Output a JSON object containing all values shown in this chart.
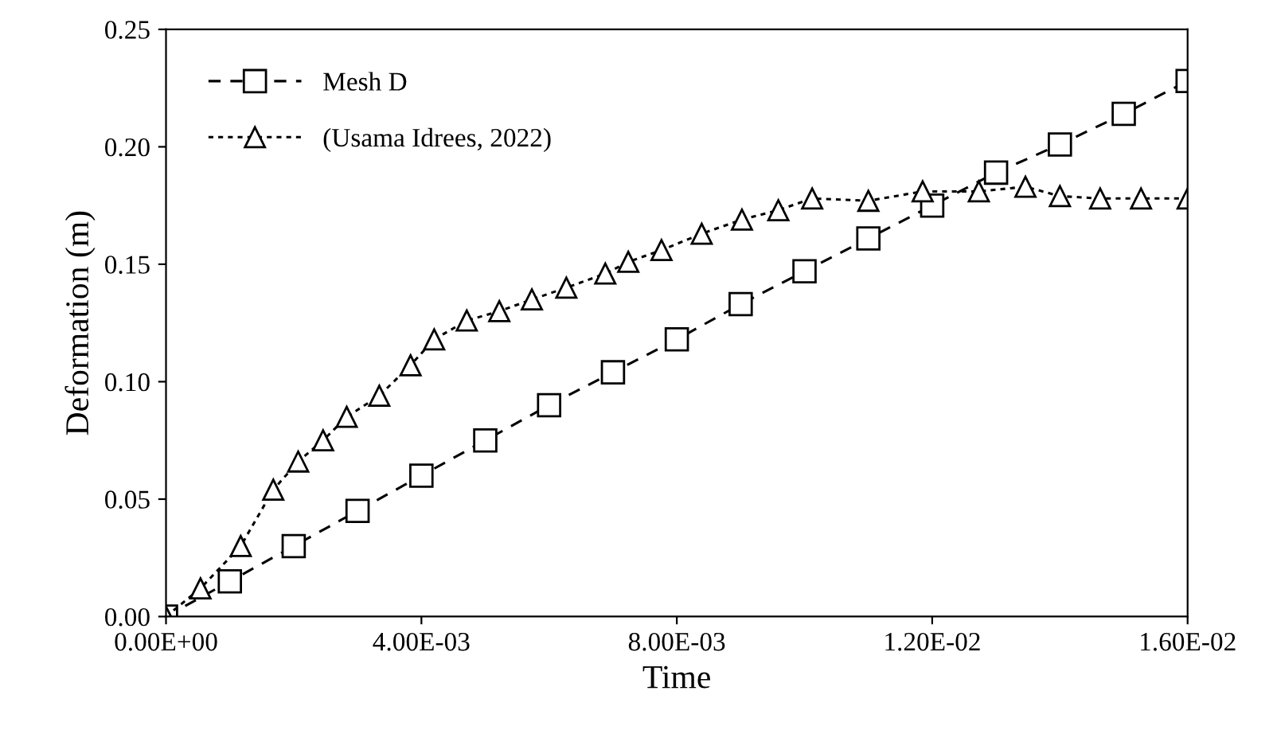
{
  "chart_data": {
    "type": "line",
    "xlabel": "Time",
    "ylabel": "Deformation (m)",
    "xlim": [
      0,
      0.016
    ],
    "ylim": [
      0,
      0.25
    ],
    "xticks": [
      {
        "value": 0,
        "label": "0.00E+00"
      },
      {
        "value": 0.004,
        "label": "4.00E-03"
      },
      {
        "value": 0.008,
        "label": "8.00E-03"
      },
      {
        "value": 0.012,
        "label": "1.20E-02"
      },
      {
        "value": 0.016,
        "label": "1.60E-02"
      }
    ],
    "yticks": [
      {
        "value": 0,
        "label": "0.00"
      },
      {
        "value": 0.05,
        "label": "0.05"
      },
      {
        "value": 0.1,
        "label": "0.10"
      },
      {
        "value": 0.15,
        "label": "0.15"
      },
      {
        "value": 0.2,
        "label": "0.20"
      },
      {
        "value": 0.25,
        "label": "0.25"
      }
    ],
    "grid": false,
    "legend": "top left",
    "series": [
      {
        "name": "Mesh D",
        "color": "#000000",
        "marker": "square",
        "line_style": "dashed",
        "x": [
          0,
          0.001,
          0.002,
          0.003,
          0.004,
          0.005,
          0.006,
          0.007,
          0.008,
          0.009,
          0.01,
          0.011,
          0.012,
          0.013,
          0.014,
          0.015,
          0.016
        ],
        "values": [
          0,
          0.015,
          0.03,
          0.045,
          0.06,
          0.075,
          0.09,
          0.104,
          0.118,
          0.133,
          0.147,
          0.161,
          0.175,
          0.189,
          0.201,
          0.214,
          0.228
        ]
      },
      {
        "name": "(Usama Idrees, 2022)",
        "color": "#000000",
        "marker": "triangle",
        "line_style": "dotted",
        "x": [
          0,
          0.00054,
          0.00117,
          0.00168,
          0.00207,
          0.00246,
          0.00283,
          0.00334,
          0.00383,
          0.0042,
          0.00471,
          0.00522,
          0.00573,
          0.00627,
          0.00688,
          0.00724,
          0.00776,
          0.00839,
          0.00902,
          0.00959,
          0.01012,
          0.011,
          0.01185,
          0.01273,
          0.01346,
          0.014,
          0.01463,
          0.01527,
          0.016
        ],
        "values": [
          0,
          0.012,
          0.03,
          0.054,
          0.066,
          0.075,
          0.085,
          0.094,
          0.107,
          0.118,
          0.126,
          0.13,
          0.135,
          0.14,
          0.146,
          0.151,
          0.156,
          0.163,
          0.169,
          0.173,
          0.178,
          0.177,
          0.181,
          0.181,
          0.183,
          0.179,
          0.178,
          0.178,
          0.178
        ]
      }
    ]
  }
}
